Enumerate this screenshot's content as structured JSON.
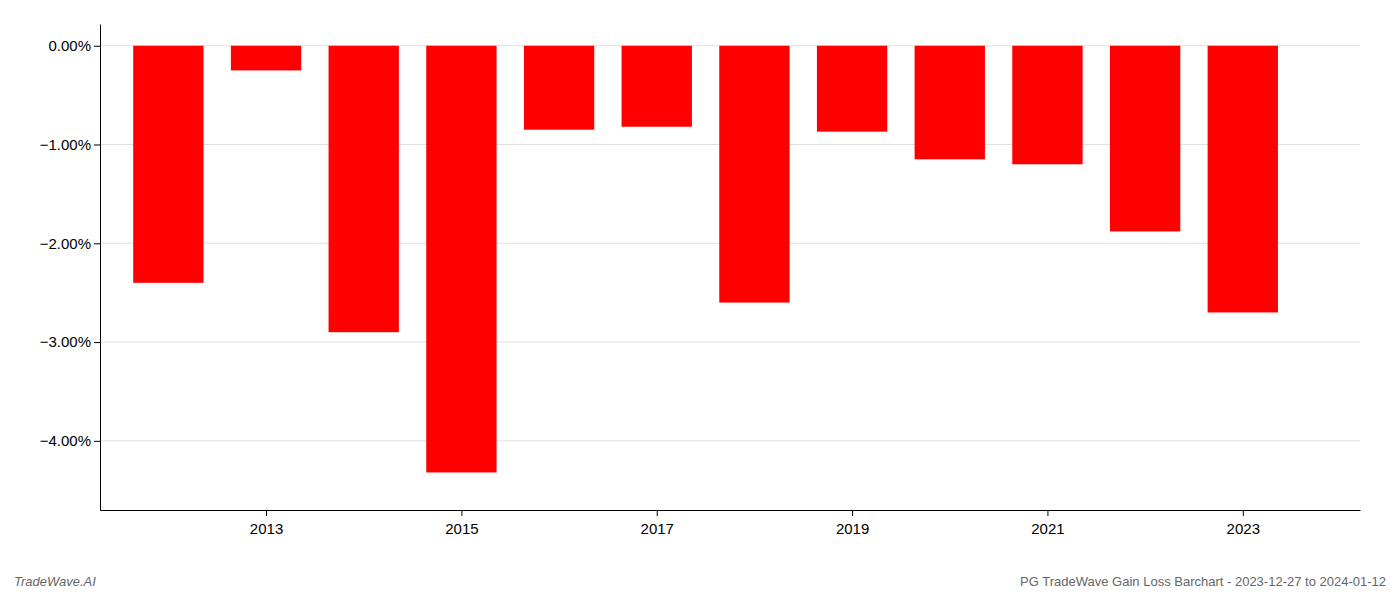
{
  "chart_data": {
    "type": "bar",
    "x": [
      2012,
      2013,
      2014,
      2015,
      2016,
      2017,
      2018,
      2019,
      2020,
      2021,
      2022,
      2023
    ],
    "values": [
      -2.4,
      -0.25,
      -2.9,
      -4.32,
      -0.85,
      -0.82,
      -2.6,
      -0.87,
      -1.15,
      -1.2,
      -1.88,
      -2.7
    ],
    "color": "#ff0000",
    "xlim": [
      2011.3,
      2024.2
    ],
    "xticks": [
      2013,
      2015,
      2017,
      2019,
      2021,
      2023
    ],
    "ylim": [
      -4.7,
      0.22
    ],
    "yticks": [
      {
        "value": 0.0,
        "label": "0.00%"
      },
      {
        "value": -1.0,
        "label": "−1.00%"
      },
      {
        "value": -2.0,
        "label": "−2.00%"
      },
      {
        "value": -3.0,
        "label": "−3.00%"
      },
      {
        "value": -4.0,
        "label": "−4.00%"
      }
    ],
    "grid": true,
    "annotations": [
      "TradeWave.AI",
      "PG TradeWave Gain Loss Barchart - 2023-12-27 to 2024-01-12"
    ]
  }
}
